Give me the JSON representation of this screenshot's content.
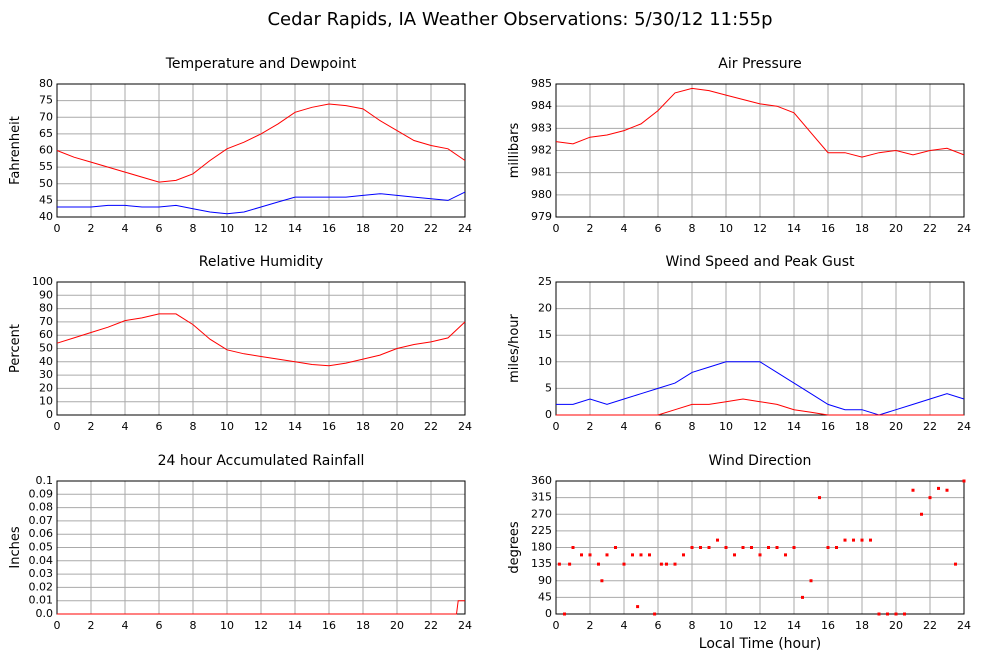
{
  "title": "Cedar Rapids, IA Weather Observations: 5/30/12 11:55p",
  "chart_data": [
    {
      "type": "line",
      "title": "Temperature and Dewpoint",
      "ylabel": "Fahrenheit",
      "x": [
        0,
        1,
        2,
        3,
        4,
        5,
        6,
        7,
        8,
        9,
        10,
        11,
        12,
        13,
        14,
        15,
        16,
        17,
        18,
        19,
        20,
        21,
        22,
        23,
        24
      ],
      "series": [
        {
          "color": "#ff0000",
          "values": [
            60,
            58,
            56.5,
            55,
            53.5,
            52,
            50.5,
            51,
            53,
            57,
            60.5,
            62.5,
            65,
            68,
            71.5,
            73,
            74,
            73.5,
            72.5,
            69,
            66,
            63,
            61.5,
            60.5,
            57
          ]
        },
        {
          "color": "#0000ff",
          "values": [
            43,
            43,
            43,
            43.5,
            43.5,
            43,
            43,
            43.5,
            42.5,
            41.5,
            41,
            41.5,
            43,
            44.5,
            46,
            46,
            46,
            46,
            46.5,
            47,
            46.5,
            46,
            45.5,
            45,
            47.5
          ]
        }
      ],
      "xlim": [
        0,
        24
      ],
      "xticks": [
        0,
        2,
        4,
        6,
        8,
        10,
        12,
        14,
        16,
        18,
        20,
        22,
        24
      ],
      "ylim": [
        40,
        80
      ],
      "yticks": [
        40,
        45,
        50,
        55,
        60,
        65,
        70,
        75,
        80
      ],
      "grid": true
    },
    {
      "type": "line",
      "title": "Air Pressure",
      "ylabel": "millibars",
      "x": [
        0,
        1,
        2,
        3,
        4,
        5,
        6,
        7,
        8,
        9,
        10,
        11,
        12,
        13,
        14,
        15,
        16,
        17,
        18,
        19,
        20,
        21,
        22,
        23,
        24
      ],
      "series": [
        {
          "color": "#ff0000",
          "values": [
            982.4,
            982.3,
            982.6,
            982.7,
            982.9,
            983.2,
            983.8,
            984.6,
            984.8,
            984.7,
            984.5,
            984.3,
            984.1,
            984.0,
            983.7,
            982.8,
            981.9,
            981.9,
            981.7,
            981.9,
            982.0,
            981.8,
            982.0,
            982.1,
            981.8
          ]
        }
      ],
      "xlim": [
        0,
        24
      ],
      "xticks": [
        0,
        2,
        4,
        6,
        8,
        10,
        12,
        14,
        16,
        18,
        20,
        22,
        24
      ],
      "ylim": [
        979,
        985
      ],
      "yticks": [
        979,
        980,
        981,
        982,
        983,
        984,
        985
      ],
      "grid": true
    },
    {
      "type": "line",
      "title": "Relative Humidity",
      "ylabel": "Percent",
      "x": [
        0,
        1,
        2,
        3,
        4,
        5,
        6,
        7,
        8,
        9,
        10,
        11,
        12,
        13,
        14,
        15,
        16,
        17,
        18,
        19,
        20,
        21,
        22,
        23,
        24
      ],
      "series": [
        {
          "color": "#ff0000",
          "values": [
            54,
            58,
            62,
            66,
            71,
            73,
            76,
            76,
            68,
            57,
            49,
            46,
            44,
            42,
            40,
            38,
            37,
            39,
            42,
            45,
            50,
            53,
            55,
            58,
            70
          ]
        }
      ],
      "xlim": [
        0,
        24
      ],
      "xticks": [
        0,
        2,
        4,
        6,
        8,
        10,
        12,
        14,
        16,
        18,
        20,
        22,
        24
      ],
      "ylim": [
        0,
        100
      ],
      "yticks": [
        0,
        10,
        20,
        30,
        40,
        50,
        60,
        70,
        80,
        90,
        100
      ],
      "grid": true
    },
    {
      "type": "line",
      "title": "Wind Speed and Peak Gust",
      "ylabel": "miles/hour",
      "x": [
        0,
        1,
        2,
        3,
        4,
        5,
        6,
        7,
        8,
        9,
        10,
        11,
        12,
        13,
        14,
        15,
        16,
        17,
        18,
        19,
        20,
        21,
        22,
        23,
        24
      ],
      "series": [
        {
          "color": "#0000ff",
          "values": [
            2,
            2,
            3,
            2,
            3,
            4,
            5,
            6,
            8,
            9,
            10,
            10,
            10,
            8,
            6,
            4,
            2,
            1,
            1,
            0,
            1,
            2,
            3,
            4,
            3
          ]
        },
        {
          "color": "#ff0000",
          "values": [
            0,
            0,
            0,
            0,
            0,
            0,
            0,
            1,
            2,
            2,
            2.5,
            3,
            2.5,
            2,
            1,
            0.5,
            0,
            0,
            0,
            0,
            0,
            0,
            0,
            0,
            0
          ]
        }
      ],
      "xlim": [
        0,
        24
      ],
      "xticks": [
        0,
        2,
        4,
        6,
        8,
        10,
        12,
        14,
        16,
        18,
        20,
        22,
        24
      ],
      "ylim": [
        0,
        25
      ],
      "yticks": [
        0,
        5,
        10,
        15,
        20,
        25
      ],
      "grid": true
    },
    {
      "type": "line",
      "title": "24 hour Accumulated Rainfall",
      "ylabel": "Inches",
      "x": [
        0,
        23.5,
        23.6,
        24
      ],
      "series": [
        {
          "color": "#ff0000",
          "values": [
            0,
            0,
            0.01,
            0.01
          ]
        }
      ],
      "xlim": [
        0,
        24
      ],
      "xticks": [
        0,
        2,
        4,
        6,
        8,
        10,
        12,
        14,
        16,
        18,
        20,
        22,
        24
      ],
      "ylim": [
        0,
        0.1
      ],
      "yticks": [
        {
          "value": 0,
          "label": "0.0"
        },
        0.01,
        0.02,
        0.03,
        0.04,
        0.05,
        0.06,
        0.07,
        0.08,
        0.09,
        0.1
      ],
      "grid": true
    },
    {
      "type": "scatter",
      "title": "Wind Direction",
      "ylabel": "degrees",
      "xlabel": "Local Time (hour)",
      "x": [
        0.2,
        0.5,
        0.8,
        1.0,
        1.5,
        2.0,
        2.5,
        2.7,
        3.0,
        3.5,
        4.0,
        4.5,
        4.8,
        5.0,
        5.5,
        5.8,
        6.2,
        6.5,
        7.0,
        7.5,
        8.0,
        8.5,
        9.0,
        9.5,
        10.0,
        10.5,
        11.0,
        11.5,
        12.0,
        12.5,
        13.0,
        13.5,
        14.0,
        14.5,
        15.0,
        15.5,
        16.0,
        16.5,
        17.0,
        17.5,
        18.0,
        18.5,
        19.0,
        19.5,
        20.0,
        20.5,
        21.0,
        21.5,
        22.0,
        22.5,
        23.0,
        23.5,
        24.0
      ],
      "series": [
        {
          "color": "#ff0000",
          "values": [
            135,
            0,
            135,
            180,
            160,
            160,
            135,
            90,
            160,
            180,
            135,
            160,
            20,
            160,
            160,
            0,
            135,
            135,
            135,
            160,
            180,
            180,
            180,
            200,
            180,
            160,
            180,
            180,
            160,
            180,
            180,
            160,
            180,
            45,
            90,
            315,
            180,
            180,
            200,
            200,
            200,
            200,
            0,
            0,
            0,
            0,
            335,
            270,
            315,
            340,
            335,
            135,
            360
          ]
        }
      ],
      "xlim": [
        0,
        24
      ],
      "xticks": [
        0,
        2,
        4,
        6,
        8,
        10,
        12,
        14,
        16,
        18,
        20,
        22,
        24
      ],
      "ylim": [
        0,
        360
      ],
      "yticks": [
        0,
        45,
        90,
        135,
        180,
        225,
        270,
        315,
        360
      ],
      "grid": true
    }
  ]
}
